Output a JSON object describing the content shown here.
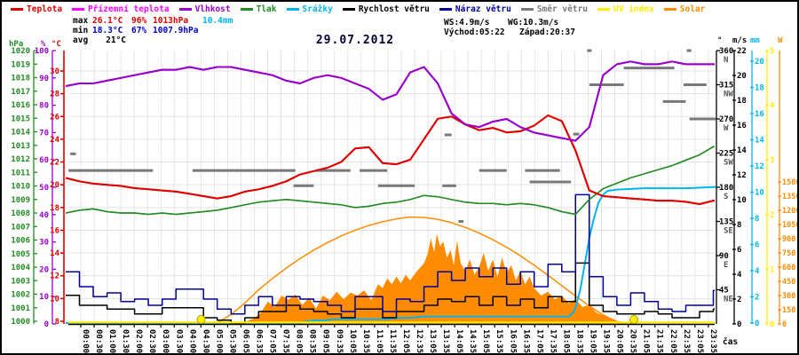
{
  "title": "29.07.2012",
  "colors": {
    "temperature": "#e00000",
    "ground_temperature": "#ff00ff",
    "humidity": "#9900cc",
    "pressure": "#228b22",
    "rain": "#00b4f0",
    "wind_speed": "#000000",
    "wind_gust": "#000099",
    "wind_direction": "#787878",
    "uv": "#ffee00",
    "solar": "#ff8c00",
    "grid": "#e3e3e3",
    "title_text": "#000033"
  },
  "legend": [
    {
      "label": "Teplota",
      "color": "#e00000"
    },
    {
      "label": "Přízemní teplota",
      "color": "#ff00ff"
    },
    {
      "label": "Vlhkost",
      "color": "#9900cc"
    },
    {
      "label": "Tlak",
      "color": "#228b22"
    },
    {
      "label": "Srážky",
      "color": "#00b4f0"
    },
    {
      "label": "Rychlost větru",
      "color": "#000000"
    },
    {
      "label": "Náraz větru",
      "color": "#000099"
    },
    {
      "label": "Směr větru",
      "color": "#787878"
    },
    {
      "label": "UV index",
      "color": "#ffee00"
    },
    {
      "label": "Solar",
      "color": "#ff8c00"
    }
  ],
  "stats": {
    "max_label": "max",
    "max_temp": "26.1°C",
    "max_hum": "96%",
    "max_pres": "1013hPa",
    "rain_total": "10.4mm",
    "min_label": "min",
    "min_temp": "18.3°C",
    "min_hum": "67%",
    "min_pres": "1007.9hPa",
    "avg_label": "avg",
    "avg_temp": "21°C",
    "wind_speed_max": "WS:4.9m/s",
    "wind_gust_max": "WG:10.3m/s",
    "sunrise": "Východ:05:22",
    "sunset": "Západ:20:37"
  },
  "x_axis_label": "čas",
  "axes": {
    "pressure": {
      "header": "hPa",
      "color": "#228b22",
      "min": 1000,
      "max": 1020,
      "step": 1
    },
    "humidity": {
      "header": "%",
      "color": "#9900cc",
      "min": 0,
      "max": 100,
      "step": 10
    },
    "temperature": {
      "header": "°C",
      "color": "#e00000",
      "min": 8,
      "max": 30,
      "step": 2
    },
    "direction": {
      "header": "°",
      "color": "#000000",
      "ticks": [
        [
          360,
          "N"
        ],
        [
          315,
          "NW"
        ],
        [
          270,
          "W"
        ],
        [
          225,
          "SW"
        ],
        [
          180,
          "S"
        ],
        [
          135,
          "SE"
        ],
        [
          90,
          "E"
        ],
        [
          45,
          "NE"
        ]
      ]
    },
    "wind": {
      "header": "m/s",
      "color": "#000000",
      "min": 0,
      "max": 22,
      "step": 2
    },
    "rain": {
      "header": "mm",
      "color": "#00b4f0",
      "min": 0,
      "max": 20,
      "step": 2
    },
    "uv": {
      "header": "",
      "color": "#ffee00",
      "min": 0,
      "max": 5,
      "step": 1
    },
    "solar": {
      "header": "W",
      "color": "#ff8c00",
      "min": 0,
      "max": 1500,
      "step": 150
    }
  },
  "chart_data": {
    "type": "line",
    "title": "29.07.2012",
    "sample_interval_minutes": 30,
    "x_tick_labels": [
      "00:00",
      "00:30",
      "01:00",
      "01:30",
      "02:00",
      "02:30",
      "03:00",
      "03:30",
      "04:00",
      "04:30",
      "05:00",
      "05:30",
      "06:05",
      "06:35",
      "07:05",
      "07:35",
      "08:05",
      "08:35",
      "09:05",
      "09:35",
      "10:05",
      "10:35",
      "11:05",
      "11:35",
      "12:05",
      "12:35",
      "13:05",
      "13:35",
      "14:05",
      "14:35",
      "15:05",
      "15:35",
      "16:05",
      "16:35",
      "17:05",
      "17:35",
      "18:05",
      "18:35",
      "19:05",
      "19:35",
      "20:05",
      "20:35",
      "21:05",
      "21:35",
      "22:05",
      "22:35",
      "23:05",
      "23:35"
    ],
    "series": [
      {
        "name": "Teplota",
        "unit": "°C",
        "color": "#e00000",
        "scale": "temp",
        "width": 2,
        "values": [
          20.6,
          20.3,
          20.1,
          20.0,
          19.9,
          19.7,
          19.6,
          19.5,
          19.4,
          19.2,
          19.0,
          18.8,
          19.0,
          19.4,
          19.6,
          19.9,
          20.3,
          20.9,
          21.2,
          21.5,
          22.0,
          23.2,
          23.3,
          21.9,
          21.8,
          22.2,
          24.0,
          25.8,
          26.0,
          25.3,
          24.8,
          25.0,
          24.6,
          24.7,
          25.2,
          26.1,
          25.6,
          23.0,
          19.5,
          19.0,
          18.9,
          18.8,
          18.7,
          18.6,
          18.6,
          18.5,
          18.3,
          18.6
        ]
      },
      {
        "name": "Vlhkost",
        "unit": "%",
        "color": "#9900cc",
        "scale": "hum",
        "width": 2,
        "values": [
          87,
          88,
          88,
          89,
          90,
          91,
          92,
          93,
          93,
          94,
          93,
          94,
          94,
          93,
          92,
          91,
          89,
          88,
          90,
          91,
          90,
          88,
          86,
          82,
          84,
          92,
          94,
          88,
          77,
          73,
          72,
          74,
          75,
          72,
          70,
          69,
          68,
          67,
          72,
          91,
          95,
          96,
          95,
          95,
          96,
          95,
          95,
          95
        ]
      },
      {
        "name": "Tlak",
        "unit": "hPa",
        "color": "#228b22",
        "scale": "pres",
        "width": 1.5,
        "values": [
          1008.0,
          1008.2,
          1008.3,
          1008.1,
          1008.0,
          1008.0,
          1007.9,
          1008.0,
          1007.9,
          1008.0,
          1008.1,
          1008.2,
          1008.4,
          1008.6,
          1008.8,
          1008.9,
          1009.0,
          1008.9,
          1008.8,
          1008.7,
          1008.6,
          1008.4,
          1008.5,
          1008.7,
          1008.8,
          1009.0,
          1009.3,
          1009.2,
          1009.0,
          1008.8,
          1008.7,
          1008.7,
          1008.6,
          1008.7,
          1008.6,
          1008.4,
          1008.1,
          1007.9,
          1009.0,
          1009.8,
          1010.2,
          1010.6,
          1010.9,
          1011.2,
          1011.5,
          1011.9,
          1012.3,
          1012.9
        ]
      },
      {
        "name": "Náraz větru",
        "unit": "m/s",
        "color": "#000099",
        "scale": "ms",
        "width": 1.5,
        "step": true,
        "values": [
          4.2,
          3.0,
          2.2,
          2.5,
          1.8,
          2.0,
          1.5,
          2.0,
          2.8,
          2.8,
          2.0,
          1.2,
          0.8,
          1.5,
          2.2,
          1.5,
          2.2,
          2.0,
          1.8,
          1.5,
          1.0,
          2.2,
          2.2,
          1.0,
          2.0,
          1.8,
          3.0,
          4.2,
          3.5,
          4.5,
          3.8,
          4.5,
          3.2,
          4.2,
          3.0,
          4.8,
          4.2,
          10.4,
          3.8,
          2.2,
          1.5,
          2.5,
          1.8,
          1.2,
          1.0,
          1.5,
          1.5,
          2.7
        ]
      },
      {
        "name": "Rychlost větru",
        "unit": "m/s",
        "color": "#000000",
        "scale": "ms",
        "width": 1.5,
        "step": true,
        "values": [
          2.3,
          1.5,
          1.5,
          1.2,
          1.2,
          0.8,
          0.8,
          1.3,
          1.3,
          1.3,
          0.5,
          0.3,
          0.0,
          0.5,
          1.0,
          1.0,
          1.5,
          1.2,
          1.0,
          0.8,
          0.5,
          1.2,
          1.2,
          0.5,
          1.0,
          1.0,
          1.5,
          2.0,
          1.8,
          2.2,
          1.5,
          2.2,
          1.5,
          2.0,
          1.3,
          2.2,
          1.8,
          4.9,
          1.5,
          1.0,
          0.8,
          0.8,
          1.0,
          0.8,
          0.5,
          0.5,
          1.0,
          1.2
        ]
      }
    ],
    "rain_cumulative_mm": [
      [
        0,
        0
      ],
      [
        510,
        0
      ],
      [
        520,
        0.1
      ],
      [
        540,
        0.2
      ],
      [
        560,
        0.2
      ],
      [
        580,
        0.3
      ],
      [
        600,
        0.3
      ],
      [
        630,
        0.3
      ],
      [
        660,
        0.3
      ],
      [
        700,
        0.3
      ],
      [
        730,
        0.4
      ],
      [
        750,
        0.4
      ],
      [
        780,
        0.5
      ],
      [
        1095,
        0.5
      ],
      [
        1105,
        0.8
      ],
      [
        1110,
        1.2
      ],
      [
        1120,
        2.5
      ],
      [
        1130,
        4.5
      ],
      [
        1140,
        6.5
      ],
      [
        1150,
        8.0
      ],
      [
        1160,
        9.2
      ],
      [
        1170,
        9.8
      ],
      [
        1180,
        10.1
      ],
      [
        1200,
        10.2
      ],
      [
        1260,
        10.3
      ],
      [
        1350,
        10.3
      ],
      [
        1415,
        10.4
      ]
    ],
    "solar_w": [
      [
        380,
        5
      ],
      [
        395,
        30
      ],
      [
        410,
        60
      ],
      [
        425,
        120
      ],
      [
        440,
        235
      ],
      [
        455,
        180
      ],
      [
        470,
        300
      ],
      [
        485,
        255
      ],
      [
        500,
        310
      ],
      [
        515,
        200
      ],
      [
        530,
        280
      ],
      [
        545,
        160
      ],
      [
        560,
        300
      ],
      [
        575,
        250
      ],
      [
        590,
        340
      ],
      [
        605,
        260
      ],
      [
        620,
        330
      ],
      [
        635,
        300
      ],
      [
        650,
        355
      ],
      [
        665,
        250
      ],
      [
        680,
        420
      ],
      [
        690,
        380
      ],
      [
        700,
        480
      ],
      [
        710,
        420
      ],
      [
        720,
        500
      ],
      [
        730,
        430
      ],
      [
        740,
        520
      ],
      [
        750,
        460
      ],
      [
        765,
        560
      ],
      [
        780,
        640
      ],
      [
        788,
        740
      ],
      [
        795,
        900
      ],
      [
        802,
        760
      ],
      [
        808,
        950
      ],
      [
        815,
        820
      ],
      [
        822,
        870
      ],
      [
        830,
        700
      ],
      [
        838,
        780
      ],
      [
        845,
        620
      ],
      [
        852,
        880
      ],
      [
        860,
        640
      ],
      [
        870,
        560
      ],
      [
        880,
        680
      ],
      [
        890,
        520
      ],
      [
        900,
        600
      ],
      [
        910,
        750
      ],
      [
        920,
        560
      ],
      [
        930,
        680
      ],
      [
        940,
        500
      ],
      [
        950,
        700
      ],
      [
        960,
        540
      ],
      [
        970,
        620
      ],
      [
        980,
        460
      ],
      [
        990,
        560
      ],
      [
        1000,
        420
      ],
      [
        1010,
        500
      ],
      [
        1020,
        380
      ],
      [
        1035,
        300
      ],
      [
        1050,
        340
      ],
      [
        1065,
        260
      ],
      [
        1080,
        300
      ],
      [
        1095,
        220
      ],
      [
        1110,
        260
      ],
      [
        1125,
        180
      ],
      [
        1140,
        200
      ],
      [
        1155,
        120
      ],
      [
        1170,
        90
      ],
      [
        1185,
        60
      ],
      [
        1200,
        20
      ],
      [
        1215,
        5
      ],
      [
        1230,
        0
      ]
    ],
    "solar_theoretical_w": [
      0,
      0,
      0,
      0,
      0,
      0,
      0,
      0,
      0,
      0,
      0,
      10,
      100,
      220,
      360,
      480,
      590,
      690,
      780,
      860,
      930,
      990,
      1040,
      1080,
      1110,
      1130,
      1125,
      1105,
      1070,
      1020,
      960,
      890,
      810,
      720,
      620,
      515,
      405,
      295,
      190,
      95,
      25,
      0,
      0,
      0,
      0,
      0,
      0,
      0
    ],
    "uv_index_constant": 0,
    "wind_direction_segments": [
      {
        "m1": 10,
        "m2": 22,
        "deg": 224
      },
      {
        "m1": 6,
        "m2": 190,
        "deg": 202
      },
      {
        "m1": 276,
        "m2": 500,
        "deg": 202
      },
      {
        "m1": 496,
        "m2": 540,
        "deg": 182
      },
      {
        "m1": 546,
        "m2": 620,
        "deg": 202
      },
      {
        "m1": 640,
        "m2": 700,
        "deg": 202
      },
      {
        "m1": 680,
        "m2": 760,
        "deg": 182
      },
      {
        "m1": 820,
        "m2": 850,
        "deg": 182
      },
      {
        "m1": 825,
        "m2": 840,
        "deg": 249
      },
      {
        "m1": 855,
        "m2": 866,
        "deg": 135
      },
      {
        "m1": 900,
        "m2": 960,
        "deg": 202
      },
      {
        "m1": 1000,
        "m2": 1076,
        "deg": 202
      },
      {
        "m1": 1010,
        "m2": 1100,
        "deg": 187
      },
      {
        "m1": 1105,
        "m2": 1118,
        "deg": 250
      },
      {
        "m1": 1135,
        "m2": 1145,
        "deg": 360
      },
      {
        "m1": 1140,
        "m2": 1215,
        "deg": 315
      },
      {
        "m1": 1215,
        "m2": 1325,
        "deg": 337
      },
      {
        "m1": 1300,
        "m2": 1350,
        "deg": 293
      },
      {
        "m1": 1352,
        "m2": 1362,
        "deg": 360
      },
      {
        "m1": 1345,
        "m2": 1395,
        "deg": 315
      },
      {
        "m1": 1358,
        "m2": 1415,
        "deg": 270
      }
    ],
    "sun_markers_minutes": [
      322,
      1237
    ],
    "sunrise": "05:22",
    "sunset": "20:37"
  }
}
